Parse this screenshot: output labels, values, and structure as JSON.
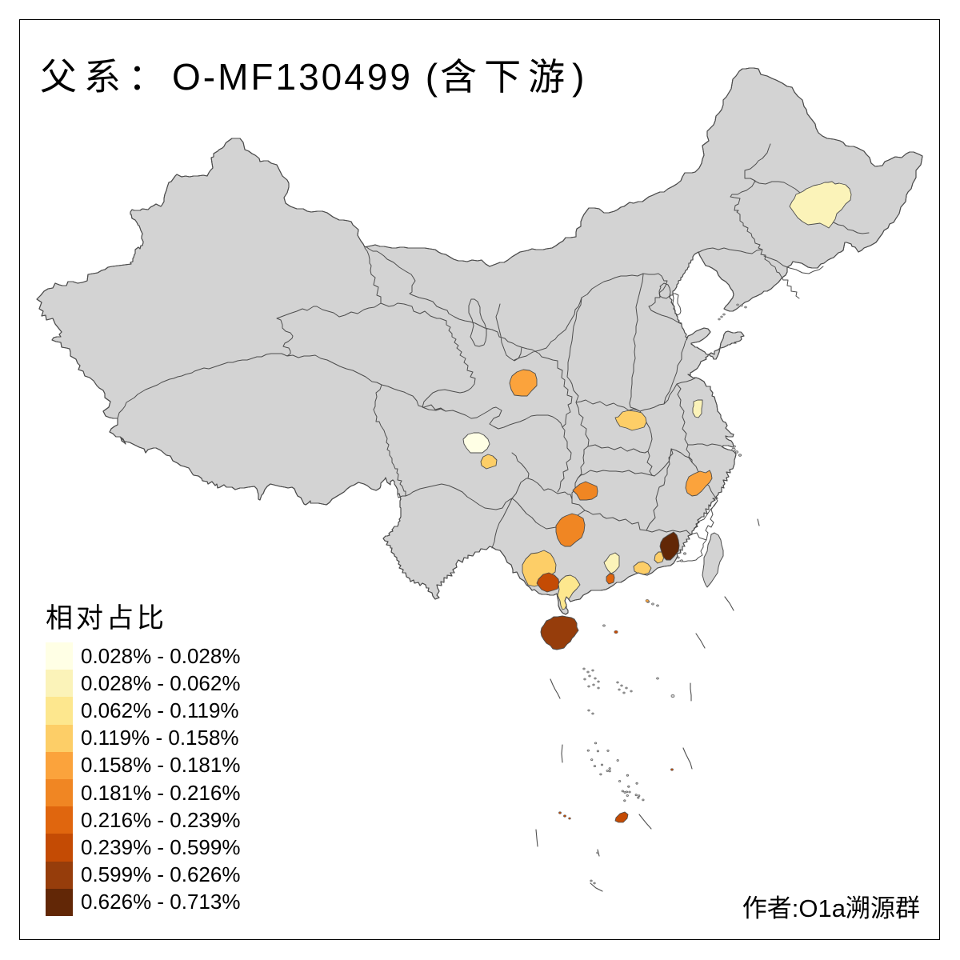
{
  "title": {
    "text": "父系： O-MF130499 (含下游)",
    "parts": [
      {
        "t": "父系：",
        "cjk": true
      },
      {
        "t": "O-MF130499 (",
        "cjk": false
      },
      {
        "t": "含下游",
        "cjk": true
      },
      {
        "t": ")",
        "cjk": false
      }
    ]
  },
  "legend": {
    "title": "相对占比",
    "entries": [
      {
        "label": "0.028% - 0.028%",
        "color": "#FFFFE5"
      },
      {
        "label": "0.028% - 0.062%",
        "color": "#FBF3B9"
      },
      {
        "label": "0.062% - 0.119%",
        "color": "#FDE78E"
      },
      {
        "label": "0.119% - 0.158%",
        "color": "#FDCE67"
      },
      {
        "label": "0.158% - 0.181%",
        "color": "#FBA33C"
      },
      {
        "label": "0.181% - 0.216%",
        "color": "#F08623"
      },
      {
        "label": "0.216% - 0.239%",
        "color": "#E0660E"
      },
      {
        "label": "0.239% - 0.599%",
        "color": "#C44B04"
      },
      {
        "label": "0.599% - 0.626%",
        "color": "#963D0B"
      },
      {
        "label": "0.626% - 0.713%",
        "color": "#622706"
      }
    ]
  },
  "attribution": {
    "text": "作者:O1a溯源群"
  },
  "map": {
    "base_fill": "#D3D3D3",
    "border_color": "#4D4D4D",
    "background": "#FFFFFF",
    "frame_color": "#000000"
  },
  "chart_data": {
    "type": "choropleth-map",
    "region": "China (prefecture level)",
    "title": "父系：  O-MF130499 (含下游)",
    "legend_title": "相对占比",
    "classes": [
      {
        "range": "0.028% - 0.028%",
        "color": "#FFFFE5"
      },
      {
        "range": "0.028% - 0.062%",
        "color": "#FBF3B9"
      },
      {
        "range": "0.062% - 0.119%",
        "color": "#FDE78E"
      },
      {
        "range": "0.119% - 0.158%",
        "color": "#FDCE67"
      },
      {
        "range": "0.158% - 0.181%",
        "color": "#FBA33C"
      },
      {
        "range": "0.181% - 0.216%",
        "color": "#F08623"
      },
      {
        "range": "0.216% - 0.239%",
        "color": "#E0660E"
      },
      {
        "range": "0.239% - 0.599%",
        "color": "#C44B04"
      },
      {
        "range": "0.599% - 0.626%",
        "color": "#963D0B"
      },
      {
        "range": "0.626% - 0.713%",
        "color": "#622706"
      }
    ],
    "highlighted_regions": [
      {
        "approx_location": "Heilongjiang (central)",
        "class": 2,
        "range": "0.028% - 0.062%"
      },
      {
        "approx_location": "Shaanxi (north)",
        "class": 5,
        "range": "0.158% - 0.181%"
      },
      {
        "approx_location": "Henan (central)",
        "class": 4,
        "range": "0.119% - 0.158%"
      },
      {
        "approx_location": "Jiangsu (central)",
        "class": 2,
        "range": "0.028% - 0.062%"
      },
      {
        "approx_location": "Sichuan (Chengdu area)",
        "class": 1,
        "range": "0.028% - 0.028%"
      },
      {
        "approx_location": "Sichuan (south of Chengdu)",
        "class": 4,
        "range": "0.119% - 0.158%"
      },
      {
        "approx_location": "Hunan (north)",
        "class": 6,
        "range": "0.181% - 0.216%"
      },
      {
        "approx_location": "Hunan (southwest)",
        "class": 6,
        "range": "0.181% - 0.216%"
      },
      {
        "approx_location": "Zhejiang (southwest)",
        "class": 5,
        "range": "0.158% - 0.181%"
      },
      {
        "approx_location": "Guangxi (west)",
        "class": 4,
        "range": "0.119% - 0.158%"
      },
      {
        "approx_location": "Guangxi (south-central)",
        "class": 8,
        "range": "0.239% - 0.599%"
      },
      {
        "approx_location": "Guangdong (Leizhou peninsula)",
        "class": 3,
        "range": "0.062% - 0.119%"
      },
      {
        "approx_location": "Guangdong (west)",
        "class": 2,
        "range": "0.028% - 0.062%"
      },
      {
        "approx_location": "Guangdong (west, small)",
        "class": 7,
        "range": "0.216% - 0.239%"
      },
      {
        "approx_location": "Guangdong (east)",
        "class": 4,
        "range": "0.119% - 0.158%"
      },
      {
        "approx_location": "Guangdong/Fujian border",
        "class": 4,
        "range": "0.119% - 0.158%"
      },
      {
        "approx_location": "Fujian (south coast)",
        "class": 10,
        "range": "0.626% - 0.713%"
      },
      {
        "approx_location": "Hainan",
        "class": 9,
        "range": "0.599% - 0.626%"
      },
      {
        "approx_location": "South China Sea islands",
        "class": 8,
        "range": "0.239% - 0.599%"
      }
    ]
  }
}
